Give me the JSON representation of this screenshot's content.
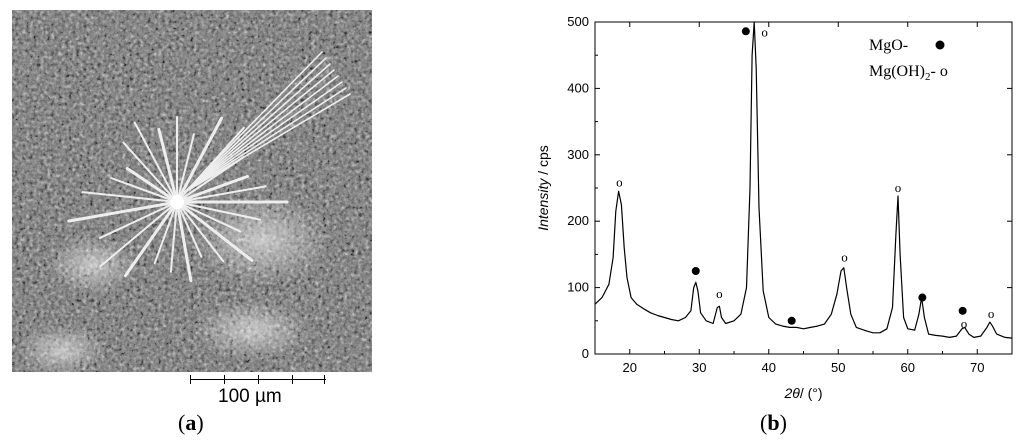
{
  "panel_a": {
    "label_letter": "a",
    "scale_bar_text": "100 µm"
  },
  "panel_b": {
    "label_letter": "b"
  },
  "chart_data": {
    "type": "line",
    "xlabel_var": "2θ",
    "xlabel_unit": "/ (°)",
    "ylabel_var": "Intensity",
    "ylabel_unit": " / cps",
    "xlim": [
      15,
      75
    ],
    "ylim": [
      0,
      500
    ],
    "xticks": [
      20,
      30,
      40,
      50,
      60,
      70
    ],
    "yticks": [
      0,
      100,
      200,
      300,
      400,
      500
    ],
    "legend": {
      "placement": "top-right",
      "entries": [
        {
          "label": "MgO-",
          "marker": "filled-circle",
          "color": "#000000"
        },
        {
          "label_main": "Mg(OH)",
          "label_sub": "2",
          "label_tail": "- o",
          "marker": "open-circle"
        }
      ]
    },
    "series": [
      {
        "x": [
          15,
          16,
          17,
          17.6,
          18,
          18.4,
          18.8,
          19.2,
          19.6,
          20.2,
          21,
          22,
          23,
          24,
          25,
          26,
          27,
          28,
          28.8,
          29.2,
          29.5,
          29.8,
          30.2,
          31,
          32,
          32.6,
          32.9,
          33.2,
          33.8,
          35,
          36,
          36.8,
          37.3,
          37.6,
          37.9,
          38.2,
          38.6,
          39.2,
          40,
          41,
          42,
          43,
          44,
          45,
          46,
          47,
          48,
          49,
          49.8,
          50.4,
          50.8,
          51.2,
          51.8,
          52.6,
          54,
          55,
          56,
          57,
          57.8,
          58.3,
          58.6,
          58.9,
          59.4,
          60,
          61,
          61.6,
          62,
          62.4,
          63,
          64,
          65,
          66,
          67,
          67.8,
          68.2,
          68.8,
          69.5,
          70.5,
          71.4,
          71.8,
          72.2,
          72.8,
          74,
          75
        ],
        "y": [
          75,
          85,
          105,
          145,
          215,
          245,
          225,
          160,
          115,
          85,
          75,
          68,
          62,
          58,
          55,
          52,
          50,
          55,
          65,
          100,
          108,
          95,
          62,
          50,
          46,
          70,
          72,
          55,
          46,
          50,
          60,
          100,
          250,
          450,
          500,
          430,
          220,
          95,
          55,
          45,
          42,
          40,
          40,
          38,
          40,
          42,
          45,
          60,
          90,
          125,
          130,
          100,
          60,
          40,
          35,
          32,
          32,
          38,
          70,
          180,
          238,
          150,
          55,
          38,
          36,
          60,
          85,
          55,
          30,
          28,
          27,
          25,
          27,
          38,
          40,
          30,
          25,
          27,
          40,
          48,
          42,
          30,
          25,
          24
        ]
      }
    ],
    "peak_markers": [
      {
        "x": 18.5,
        "y": 258,
        "kind": "open"
      },
      {
        "x": 29.5,
        "y": 125,
        "kind": "filled"
      },
      {
        "x": 32.9,
        "y": 90,
        "kind": "open"
      },
      {
        "x": 36.7,
        "y": 486,
        "kind": "filled"
      },
      {
        "x": 39.4,
        "y": 484,
        "kind": "open"
      },
      {
        "x": 43.3,
        "y": 50,
        "kind": "filled"
      },
      {
        "x": 50.9,
        "y": 145,
        "kind": "open"
      },
      {
        "x": 58.6,
        "y": 250,
        "kind": "open"
      },
      {
        "x": 62.1,
        "y": 85,
        "kind": "filled"
      },
      {
        "x": 67.9,
        "y": 65,
        "kind": "filled"
      },
      {
        "x": 68.1,
        "y": 45,
        "kind": "open"
      },
      {
        "x": 72.0,
        "y": 60,
        "kind": "open"
      }
    ]
  }
}
